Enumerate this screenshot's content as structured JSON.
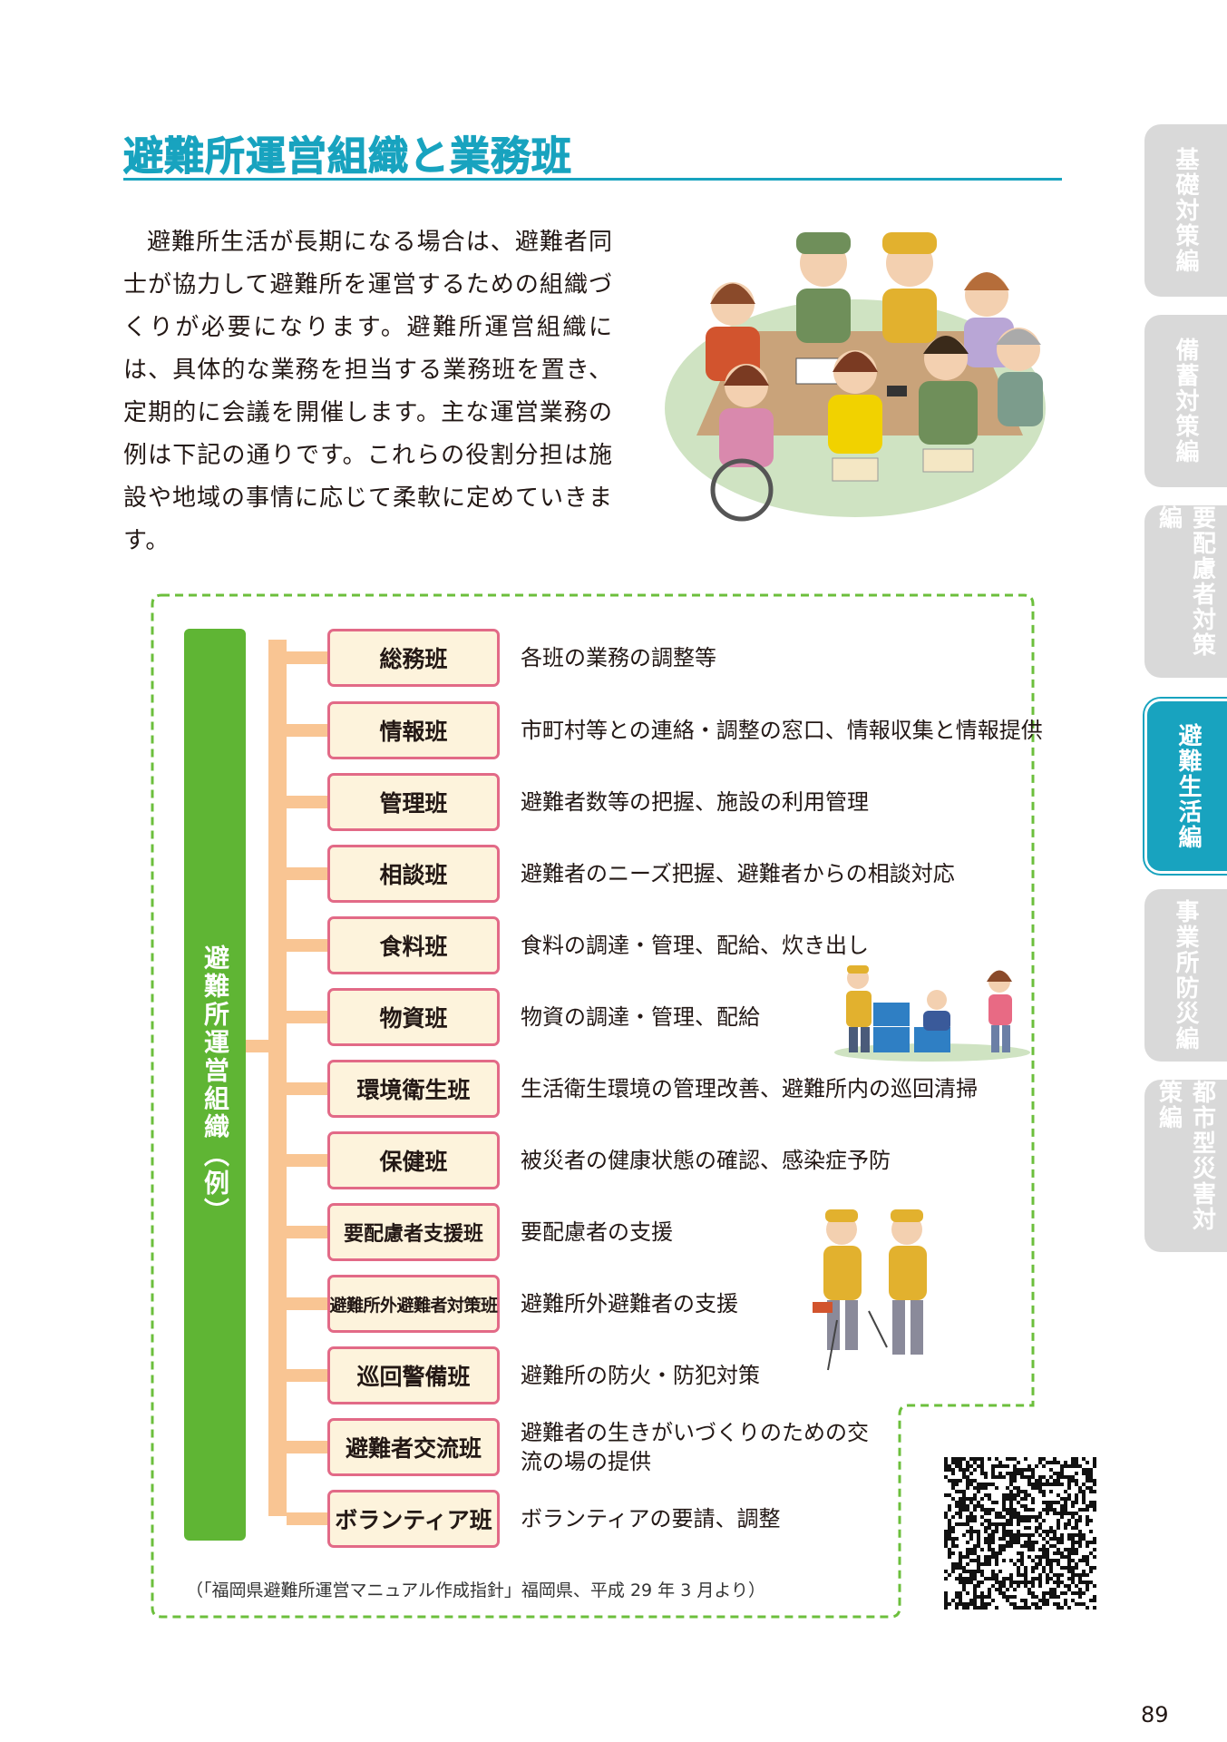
{
  "title": "避難所運営組織と業務班",
  "intro": "避難所生活が長期になる場合は、避難者同士が協力して避難所を運営するための組織づくりが必要になります。避難所運営組織には、具体的な業務を担当する業務班を置き、定期的に会議を開催します。主な運営業務の例は下記の通りです。これらの役割分担は施設や地域の事情に応じて柔軟に定めていきます。",
  "side_tabs": [
    {
      "label": "基礎対策編",
      "active": false
    },
    {
      "label": "備蓄対策編",
      "active": false
    },
    {
      "label": "要配慮者対策編",
      "active": false
    },
    {
      "label": "避難生活編",
      "active": true
    },
    {
      "label": "事業所防災編",
      "active": false
    },
    {
      "label": "都市型災害対策編",
      "active": false
    }
  ],
  "org_label": "避難所運営組織（例）",
  "teams": [
    {
      "name": "総務班",
      "desc": "各班の業務の調整等"
    },
    {
      "name": "情報班",
      "desc": "市町村等との連絡・調整の窓口、情報収集と情報提供"
    },
    {
      "name": "管理班",
      "desc": "避難者数等の把握、施設の利用管理"
    },
    {
      "name": "相談班",
      "desc": "避難者のニーズ把握、避難者からの相談対応"
    },
    {
      "name": "食料班",
      "desc": "食料の調達・管理、配給、炊き出し"
    },
    {
      "name": "物資班",
      "desc": "物資の調達・管理、配給"
    },
    {
      "name": "環境衛生班",
      "desc": "生活衛生環境の管理改善、避難所内の巡回清掃"
    },
    {
      "name": "保健班",
      "desc": "被災者の健康状態の確認、感染症予防"
    },
    {
      "name": "要配慮者支援班",
      "desc": "要配慮者の支援"
    },
    {
      "name": "避難所外避難者対策班",
      "desc": "避難所外避難者の支援"
    },
    {
      "name": "巡回警備班",
      "desc": "避難所の防火・防犯対策"
    },
    {
      "name": "避難者交流班",
      "desc": "避難者の生きがいづくりのための交流の場の提供"
    },
    {
      "name": "ボランティア班",
      "desc": "ボランティアの要請、調整"
    }
  ],
  "caption": "（「福岡県避難所運営マニュアル作成指針」福岡県、平成 29 年 3 月より）",
  "page_number": "89",
  "colors": {
    "accent": "#18a3bf",
    "org_green": "#5fb534",
    "connector": "#f9c593",
    "team_border": "#e26a87",
    "team_fill": "#fdf3dc",
    "dash_border": "#6cbf3c",
    "tab_inactive": "#d9d9d9"
  }
}
